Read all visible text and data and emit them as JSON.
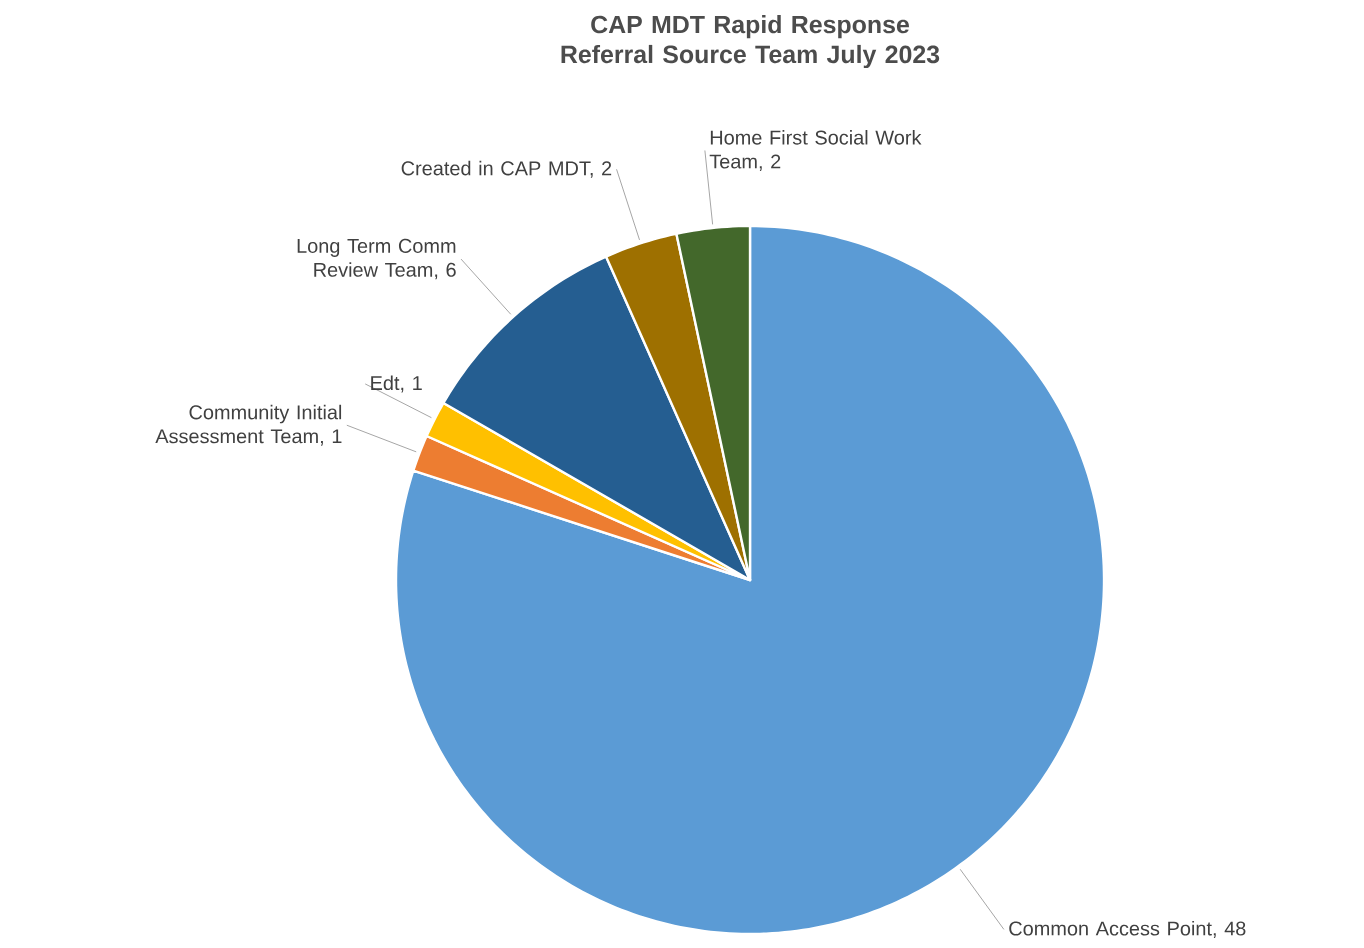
{
  "chart_data": {
    "type": "pie",
    "title": "CAP MDT Rapid Response Referral Source Team July 2023",
    "values": [
      48,
      1,
      1,
      6,
      2,
      2
    ],
    "value_labels": [
      "Common Access Point, 48",
      "Community Initial Assessment Team, 1",
      "Edt, 1",
      "Long Term Comm Review Team, 6",
      "Created in CAP MDT, 2",
      "Home First Social Work Team, 2"
    ],
    "colors": [
      "#5b9bd5",
      "#ed7d31",
      "#ffc000",
      "#255e91",
      "#9e7000",
      "#43682b"
    ]
  }
}
